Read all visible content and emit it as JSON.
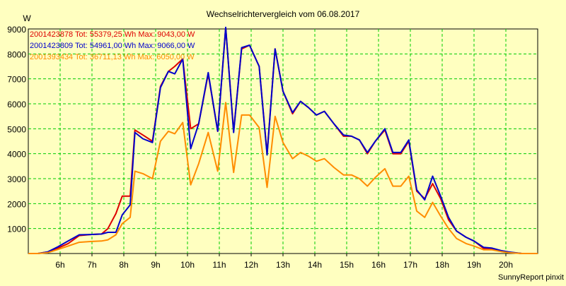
{
  "chart_data": {
    "type": "line",
    "title": "Wechselrichtervergleich vom 06.08.2017",
    "ylabel": "W",
    "footer": "SunnyReport pinxit",
    "xlim": [
      5.0,
      21.0
    ],
    "ylim": [
      0,
      9000
    ],
    "y_ticks": [
      1000,
      2000,
      3000,
      4000,
      5000,
      6000,
      7000,
      8000,
      9000
    ],
    "x_ticks": [
      {
        "label": "6h",
        "value": 6
      },
      {
        "label": "7h",
        "value": 7
      },
      {
        "label": "8h",
        "value": 8
      },
      {
        "label": "9h",
        "value": 9
      },
      {
        "label": "10h",
        "value": 10
      },
      {
        "label": "11h",
        "value": 11
      },
      {
        "label": "12h",
        "value": 12
      },
      {
        "label": "13h",
        "value": 13
      },
      {
        "label": "14h",
        "value": 14
      },
      {
        "label": "15h",
        "value": 15
      },
      {
        "label": "16h",
        "value": 16
      },
      {
        "label": "17h",
        "value": 17
      },
      {
        "label": "18h",
        "value": 18
      },
      {
        "label": "19h",
        "value": 19
      },
      {
        "label": "20h",
        "value": 20
      }
    ],
    "grid": true,
    "legend_position": "top-left",
    "plot_background": "#ffffc0",
    "grid_color": "#00cc00",
    "series": [
      {
        "legend": "2001423878 Tot: 55379,25 Wh Max: 9043,00 W",
        "color": "#dd0000",
        "points": [
          [
            5.0,
            0
          ],
          [
            5.3,
            0
          ],
          [
            5.6,
            60
          ],
          [
            5.9,
            200
          ],
          [
            6.25,
            400
          ],
          [
            6.6,
            720
          ],
          [
            6.95,
            760
          ],
          [
            7.3,
            780
          ],
          [
            7.5,
            1000
          ],
          [
            7.75,
            1600
          ],
          [
            7.95,
            2300
          ],
          [
            8.2,
            2300
          ],
          [
            8.35,
            4950
          ],
          [
            8.6,
            4750
          ],
          [
            8.9,
            4500
          ],
          [
            9.15,
            6700
          ],
          [
            9.4,
            7300
          ],
          [
            9.6,
            7500
          ],
          [
            9.85,
            7800
          ],
          [
            10.1,
            5000
          ],
          [
            10.35,
            5200
          ],
          [
            10.65,
            7200
          ],
          [
            10.95,
            4900
          ],
          [
            11.2,
            9043
          ],
          [
            11.45,
            4900
          ],
          [
            11.7,
            8200
          ],
          [
            11.95,
            8350
          ],
          [
            12.25,
            7500
          ],
          [
            12.5,
            4000
          ],
          [
            12.75,
            8200
          ],
          [
            13.0,
            6500
          ],
          [
            13.3,
            5600
          ],
          [
            13.55,
            6100
          ],
          [
            13.8,
            5850
          ],
          [
            14.05,
            5550
          ],
          [
            14.3,
            5700
          ],
          [
            14.6,
            5200
          ],
          [
            14.9,
            4700
          ],
          [
            15.15,
            4700
          ],
          [
            15.4,
            4550
          ],
          [
            15.65,
            4000
          ],
          [
            15.9,
            4500
          ],
          [
            16.2,
            4950
          ],
          [
            16.45,
            4000
          ],
          [
            16.7,
            4000
          ],
          [
            16.95,
            4500
          ],
          [
            17.2,
            2500
          ],
          [
            17.45,
            2200
          ],
          [
            17.7,
            2800
          ],
          [
            17.95,
            2200
          ],
          [
            18.2,
            1350
          ],
          [
            18.45,
            900
          ],
          [
            18.75,
            650
          ],
          [
            19.0,
            500
          ],
          [
            19.3,
            200
          ],
          [
            19.55,
            200
          ],
          [
            19.85,
            100
          ],
          [
            20.1,
            50
          ],
          [
            20.5,
            0
          ],
          [
            21.0,
            0
          ]
        ]
      },
      {
        "legend": "2001423809 Tot: 54961,00 Wh Max: 9066,00 W",
        "color": "#0000cc",
        "points": [
          [
            5.0,
            0
          ],
          [
            5.3,
            0
          ],
          [
            5.6,
            60
          ],
          [
            5.9,
            250
          ],
          [
            6.25,
            500
          ],
          [
            6.6,
            750
          ],
          [
            6.95,
            760
          ],
          [
            7.3,
            780
          ],
          [
            7.5,
            850
          ],
          [
            7.75,
            850
          ],
          [
            7.95,
            1550
          ],
          [
            8.2,
            1950
          ],
          [
            8.35,
            4850
          ],
          [
            8.6,
            4600
          ],
          [
            8.9,
            4450
          ],
          [
            9.15,
            6650
          ],
          [
            9.4,
            7300
          ],
          [
            9.6,
            7200
          ],
          [
            9.85,
            7800
          ],
          [
            10.1,
            4200
          ],
          [
            10.35,
            5200
          ],
          [
            10.65,
            7250
          ],
          [
            10.95,
            4900
          ],
          [
            11.2,
            9066
          ],
          [
            11.45,
            4850
          ],
          [
            11.7,
            8250
          ],
          [
            11.95,
            8350
          ],
          [
            12.25,
            7500
          ],
          [
            12.5,
            3950
          ],
          [
            12.75,
            8200
          ],
          [
            13.0,
            6500
          ],
          [
            13.3,
            5650
          ],
          [
            13.55,
            6100
          ],
          [
            13.8,
            5850
          ],
          [
            14.05,
            5550
          ],
          [
            14.3,
            5700
          ],
          [
            14.6,
            5200
          ],
          [
            14.9,
            4750
          ],
          [
            15.15,
            4700
          ],
          [
            15.4,
            4550
          ],
          [
            15.65,
            4050
          ],
          [
            15.9,
            4500
          ],
          [
            16.2,
            5000
          ],
          [
            16.45,
            4050
          ],
          [
            16.7,
            4050
          ],
          [
            16.95,
            4550
          ],
          [
            17.2,
            2550
          ],
          [
            17.45,
            2150
          ],
          [
            17.7,
            3100
          ],
          [
            17.95,
            2300
          ],
          [
            18.2,
            1450
          ],
          [
            18.45,
            900
          ],
          [
            18.75,
            650
          ],
          [
            19.0,
            500
          ],
          [
            19.3,
            250
          ],
          [
            19.55,
            220
          ],
          [
            19.85,
            120
          ],
          [
            20.1,
            60
          ],
          [
            20.5,
            0
          ],
          [
            21.0,
            0
          ]
        ]
      },
      {
        "legend": "2001393434 Tot: 36711,13 Wh Max: 6050,00 W",
        "color": "#ff8c00",
        "points": [
          [
            5.0,
            0
          ],
          [
            5.3,
            0
          ],
          [
            5.6,
            30
          ],
          [
            5.9,
            150
          ],
          [
            6.25,
            300
          ],
          [
            6.6,
            450
          ],
          [
            6.95,
            480
          ],
          [
            7.3,
            500
          ],
          [
            7.5,
            550
          ],
          [
            7.75,
            750
          ],
          [
            7.95,
            1200
          ],
          [
            8.2,
            1450
          ],
          [
            8.35,
            3300
          ],
          [
            8.6,
            3200
          ],
          [
            8.9,
            3000
          ],
          [
            9.15,
            4500
          ],
          [
            9.4,
            4900
          ],
          [
            9.6,
            4800
          ],
          [
            9.85,
            5250
          ],
          [
            10.1,
            2750
          ],
          [
            10.35,
            3600
          ],
          [
            10.65,
            4850
          ],
          [
            10.95,
            3300
          ],
          [
            11.2,
            6050
          ],
          [
            11.45,
            3250
          ],
          [
            11.7,
            5550
          ],
          [
            11.95,
            5550
          ],
          [
            12.25,
            5050
          ],
          [
            12.5,
            2650
          ],
          [
            12.75,
            5500
          ],
          [
            13.0,
            4450
          ],
          [
            13.3,
            3800
          ],
          [
            13.55,
            4050
          ],
          [
            13.8,
            3900
          ],
          [
            14.05,
            3700
          ],
          [
            14.3,
            3800
          ],
          [
            14.6,
            3450
          ],
          [
            14.9,
            3150
          ],
          [
            15.15,
            3150
          ],
          [
            15.4,
            3000
          ],
          [
            15.65,
            2700
          ],
          [
            15.9,
            3050
          ],
          [
            16.2,
            3400
          ],
          [
            16.45,
            2700
          ],
          [
            16.7,
            2700
          ],
          [
            16.95,
            3100
          ],
          [
            17.2,
            1700
          ],
          [
            17.45,
            1450
          ],
          [
            17.7,
            2050
          ],
          [
            17.95,
            1500
          ],
          [
            18.2,
            1000
          ],
          [
            18.45,
            600
          ],
          [
            18.75,
            400
          ],
          [
            19.0,
            300
          ],
          [
            19.3,
            150
          ],
          [
            19.55,
            150
          ],
          [
            19.85,
            80
          ],
          [
            20.1,
            30
          ],
          [
            20.5,
            0
          ],
          [
            21.0,
            0
          ]
        ]
      }
    ]
  }
}
